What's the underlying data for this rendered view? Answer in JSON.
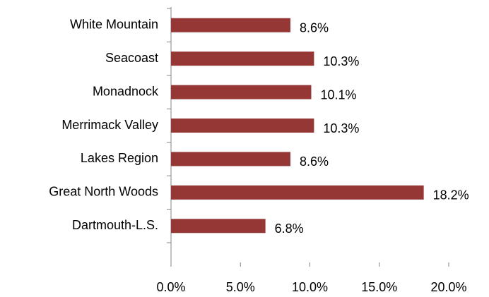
{
  "chart_data": {
    "type": "barh",
    "categories": [
      "White Mountain",
      "Seacoast",
      "Monadnock",
      "Merrimack Valley",
      "Lakes Region",
      "Great North Woods",
      "Dartmouth-L.S."
    ],
    "values": [
      8.6,
      10.3,
      10.1,
      10.3,
      8.6,
      18.2,
      6.8
    ],
    "value_labels": [
      "8.6%",
      "10.3%",
      "10.1%",
      "10.3%",
      "8.6%",
      "18.2%",
      "6.8%"
    ],
    "color": "#953735",
    "xlim": [
      0,
      20
    ],
    "xticks": [
      {
        "value": 0,
        "label": "0.0%"
      },
      {
        "value": 5,
        "label": "5.0%"
      },
      {
        "value": 10,
        "label": "10.0%"
      },
      {
        "value": 15,
        "label": "15.0%"
      },
      {
        "value": 20,
        "label": "20.0%"
      }
    ],
    "grid": false
  }
}
